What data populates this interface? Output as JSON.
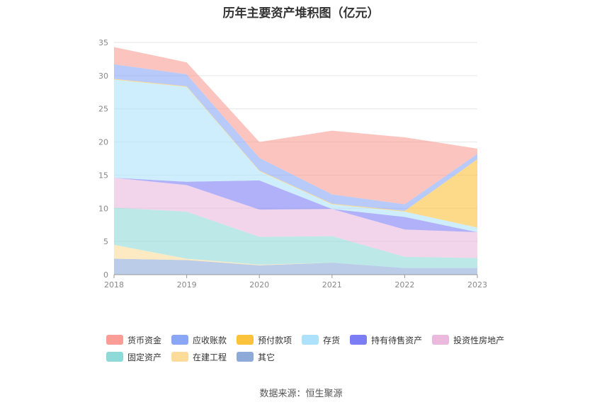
{
  "title": "历年主要资产堆积图（亿元）",
  "source": "数据来源：恒生聚源",
  "chart_data": {
    "type": "area",
    "stacked": true,
    "title": "历年主要资产堆积图（亿元）",
    "categories": [
      "2018",
      "2019",
      "2020",
      "2021",
      "2022",
      "2023"
    ],
    "ylim": [
      0,
      35
    ],
    "yticks": [
      0,
      5,
      10,
      15,
      20,
      25,
      30,
      35
    ],
    "grid": true,
    "legend_position": "bottom",
    "series": [
      {
        "name": "其它",
        "color": "#8eaad8",
        "values": [
          2.4,
          2.2,
          1.4,
          1.8,
          1.0,
          1.0
        ]
      },
      {
        "name": "在建工程",
        "color": "#fddc9a",
        "values": [
          2.1,
          0.2,
          0.1,
          0.0,
          0.0,
          0.0
        ]
      },
      {
        "name": "固定资产",
        "color": "#8fdad9",
        "values": [
          5.6,
          7.1,
          4.2,
          4.0,
          1.7,
          1.5
        ]
      },
      {
        "name": "投资性房地产",
        "color": "#eab9dd",
        "values": [
          4.5,
          4.0,
          4.1,
          4.1,
          4.1,
          3.9
        ]
      },
      {
        "name": "持有待售资产",
        "color": "#7b7df5",
        "values": [
          0.0,
          0.5,
          4.4,
          0.0,
          1.9,
          0.0
        ]
      },
      {
        "name": "存货",
        "color": "#aee1fb",
        "values": [
          14.8,
          14.3,
          1.4,
          0.7,
          0.8,
          0.7
        ]
      },
      {
        "name": "预付款项",
        "color": "#fbc23b",
        "values": [
          0.1,
          0.1,
          0.1,
          0.1,
          0.1,
          10.3
        ]
      },
      {
        "name": "应收账款",
        "color": "#89a7f6",
        "values": [
          2.2,
          1.8,
          1.9,
          1.4,
          1.0,
          0.8
        ]
      },
      {
        "name": "货币资金",
        "color": "#fa9d94",
        "values": [
          2.6,
          1.8,
          2.4,
          9.6,
          10.1,
          0.8
        ]
      }
    ]
  },
  "legend": [
    {
      "label": "货币资金",
      "color": "#fa9d94"
    },
    {
      "label": "应收账款",
      "color": "#89a7f6"
    },
    {
      "label": "预付款项",
      "color": "#fbc23b"
    },
    {
      "label": "存货",
      "color": "#aee1fb"
    },
    {
      "label": "持有待售资产",
      "color": "#7b7df5"
    },
    {
      "label": "投资性房地产",
      "color": "#eab9dd"
    },
    {
      "label": "固定资产",
      "color": "#8fdad9"
    },
    {
      "label": "在建工程",
      "color": "#fddc9a"
    },
    {
      "label": "其它",
      "color": "#8eaad8"
    }
  ]
}
